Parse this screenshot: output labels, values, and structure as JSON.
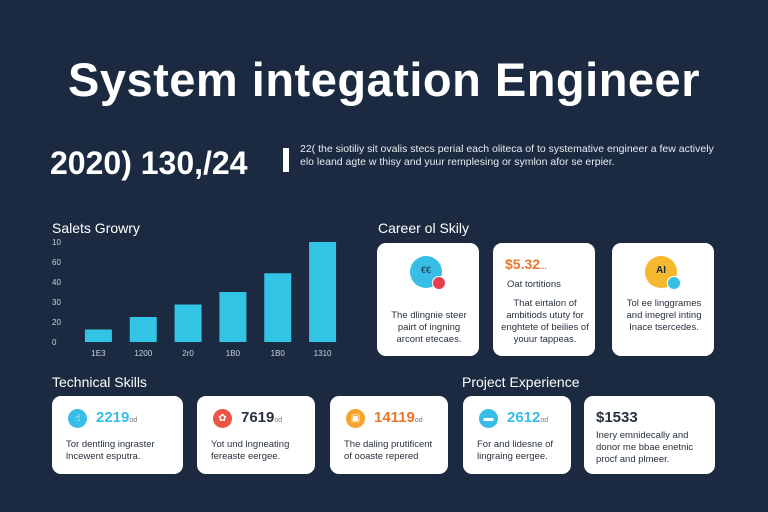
{
  "title": "System integation Engineer",
  "subtitle_number": "2020) 130,/24",
  "intro_text": "22( the siotiliy sit ovalis stecs perial each oliteca of to systemative engineer a few actively elo leand agte w thisy and yuur remplesing or symlon afor se erpier.",
  "sections": {
    "sales": "Salets Growry",
    "career": "Career ol Skily",
    "technical": "Technical Skills",
    "project": "Project Experience"
  },
  "chart_data": {
    "type": "bar",
    "title": "Salets Growry",
    "categories": [
      "1E3",
      "1200",
      "2r0",
      "1B0",
      "1B0",
      "1310"
    ],
    "values": [
      10,
      20,
      30,
      40,
      55,
      80
    ],
    "ytick_labels": [
      "0",
      "20",
      "30",
      "40",
      "60"
    ],
    "ylim": [
      0,
      80
    ],
    "top_tick_label": "10",
    "xlabel": "",
    "ylabel": "",
    "color": "#32c4e4"
  },
  "career_cards": [
    {
      "icon": "chat-icon",
      "icon_label": "€€",
      "accent": "#38bde6",
      "text": "The dlingnie steer pairt of ingning arcont etecaes."
    },
    {
      "price": "$5.32",
      "price_suffix": "...",
      "sub": "Oat tortitions",
      "text": "That eirtalon of ambitiods ututy for enghtete of beilies of youur tappeas."
    },
    {
      "icon": "ai-icon",
      "icon_label": "AI",
      "accent": "#f5b82e",
      "text": "Tol ee linggrames and imegrel inting Inace tsercedes."
    }
  ],
  "skill_cards": [
    {
      "icon": "hand-icon",
      "icon_label": "☝",
      "accent": "#38bde6",
      "value": "2219",
      "unit": "od",
      "text": "Tor dentling ingraster lncewent esputra."
    },
    {
      "icon": "gear-icon",
      "icon_label": "✿",
      "accent": "#ea5646",
      "value": "7619",
      "unit": "od",
      "text": "Yot und lngneating fereaste eergee."
    },
    {
      "icon": "lock-icon",
      "icon_label": "▣",
      "accent": "#f5a32a",
      "value": "14119",
      "unit": "od",
      "text": "The daling prutificent of ooaste repered"
    },
    {
      "icon": "folder-icon",
      "icon_label": "▬",
      "accent": "#38bde6",
      "value": "2612",
      "unit": "od",
      "text": "For and lidesne of lingraing eergee."
    },
    {
      "value": "$1533",
      "unit": "",
      "text": "Inery emnidecally and donor me bbae enetnic procf and plmeer."
    }
  ],
  "colors": {
    "background": "#1b2a40",
    "bar": "#32c4e4"
  }
}
